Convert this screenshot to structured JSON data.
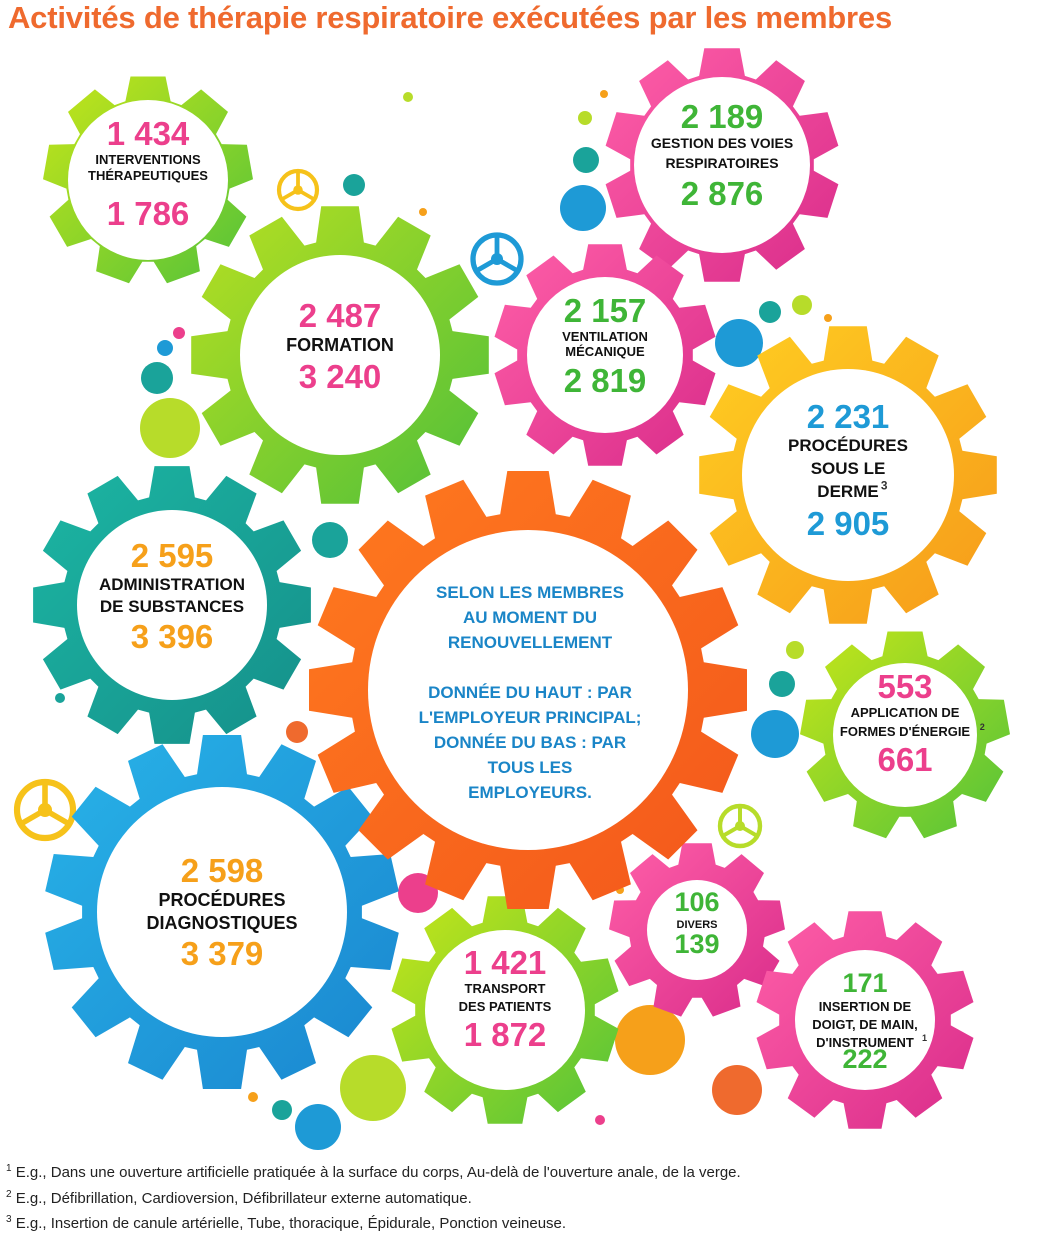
{
  "title": "Activités de thérapie respiratoire exécutées par les membres",
  "colors": {
    "pink": "#ec3f8c",
    "green": "#3fb537",
    "blue": "#1e9ad6",
    "orange": "#f6a01a",
    "teal": "#1aa39a",
    "title_orange": "#ef6a2e"
  },
  "gears": [
    {
      "id": "interventions",
      "top_value": "1 434",
      "label_lines": [
        "INTERVENTIONS",
        "THÉRAPEUTIQUES"
      ],
      "bottom_value": "1 786",
      "sup": ""
    },
    {
      "id": "formation",
      "top_value": "2 487",
      "label_lines": [
        "FORMATION"
      ],
      "bottom_value": "3 240",
      "sup": ""
    },
    {
      "id": "voies",
      "top_value": "2 189",
      "label_lines": [
        "GESTION DES VOIES",
        "RESPIRATOIRES"
      ],
      "bottom_value": "2 876",
      "sup": ""
    },
    {
      "id": "ventilation",
      "top_value": "2 157",
      "label_lines": [
        "VENTILATION",
        "MÉCANIQUE"
      ],
      "bottom_value": "2 819",
      "sup": ""
    },
    {
      "id": "derme",
      "top_value": "2 231",
      "label_lines": [
        "PROCÉDURES",
        "SOUS LE",
        "DERME"
      ],
      "bottom_value": "2 905",
      "sup": "3"
    },
    {
      "id": "substances",
      "top_value": "2 595",
      "label_lines": [
        "ADMINISTRATION",
        "DE SUBSTANCES"
      ],
      "bottom_value": "3 396",
      "sup": ""
    },
    {
      "id": "energie",
      "top_value": "553",
      "label_lines": [
        "APPLICATION DE",
        "FORMES D'ÉNERGIE"
      ],
      "bottom_value": "661",
      "sup": "2"
    },
    {
      "id": "diagnostiques",
      "top_value": "2 598",
      "label_lines": [
        "PROCÉDURES",
        "DIAGNOSTIQUES"
      ],
      "bottom_value": "3 379",
      "sup": ""
    },
    {
      "id": "transport",
      "top_value": "1 421",
      "label_lines": [
        "TRANSPORT",
        "DES PATIENTS"
      ],
      "bottom_value": "1 872",
      "sup": ""
    },
    {
      "id": "divers",
      "top_value": "106",
      "label_lines": [
        "DIVERS"
      ],
      "bottom_value": "139",
      "sup": ""
    },
    {
      "id": "insertion",
      "top_value": "171",
      "label_lines": [
        "INSERTION DE",
        "DOIGT, DE MAIN,",
        "D'INSTRUMENT"
      ],
      "bottom_value": "222",
      "sup": "1"
    }
  ],
  "center": {
    "lines": [
      "SELON LES MEMBRES",
      "AU MOMENT DU",
      "RENOUVELLEMENT",
      "",
      "DONNÉE DU HAUT : PAR",
      "L'EMPLOYEUR PRINCIPAL;",
      "DONNÉE DU BAS : PAR",
      "TOUS LES",
      "EMPLOYEURS."
    ]
  },
  "footnotes": [
    {
      "num": "1",
      "text": " E.g., Dans une ouverture artificielle pratiquée à la surface du corps, Au-delà de l'ouverture anale, de la verge."
    },
    {
      "num": "2",
      "text": " E.g., Défibrillation, Cardioversion, Défibrillateur externe automatique."
    },
    {
      "num": "3",
      "text": " E.g.,  Insertion de canule artérielle, Tube, thoracique, Épidurale, Ponction veineuse."
    }
  ]
}
